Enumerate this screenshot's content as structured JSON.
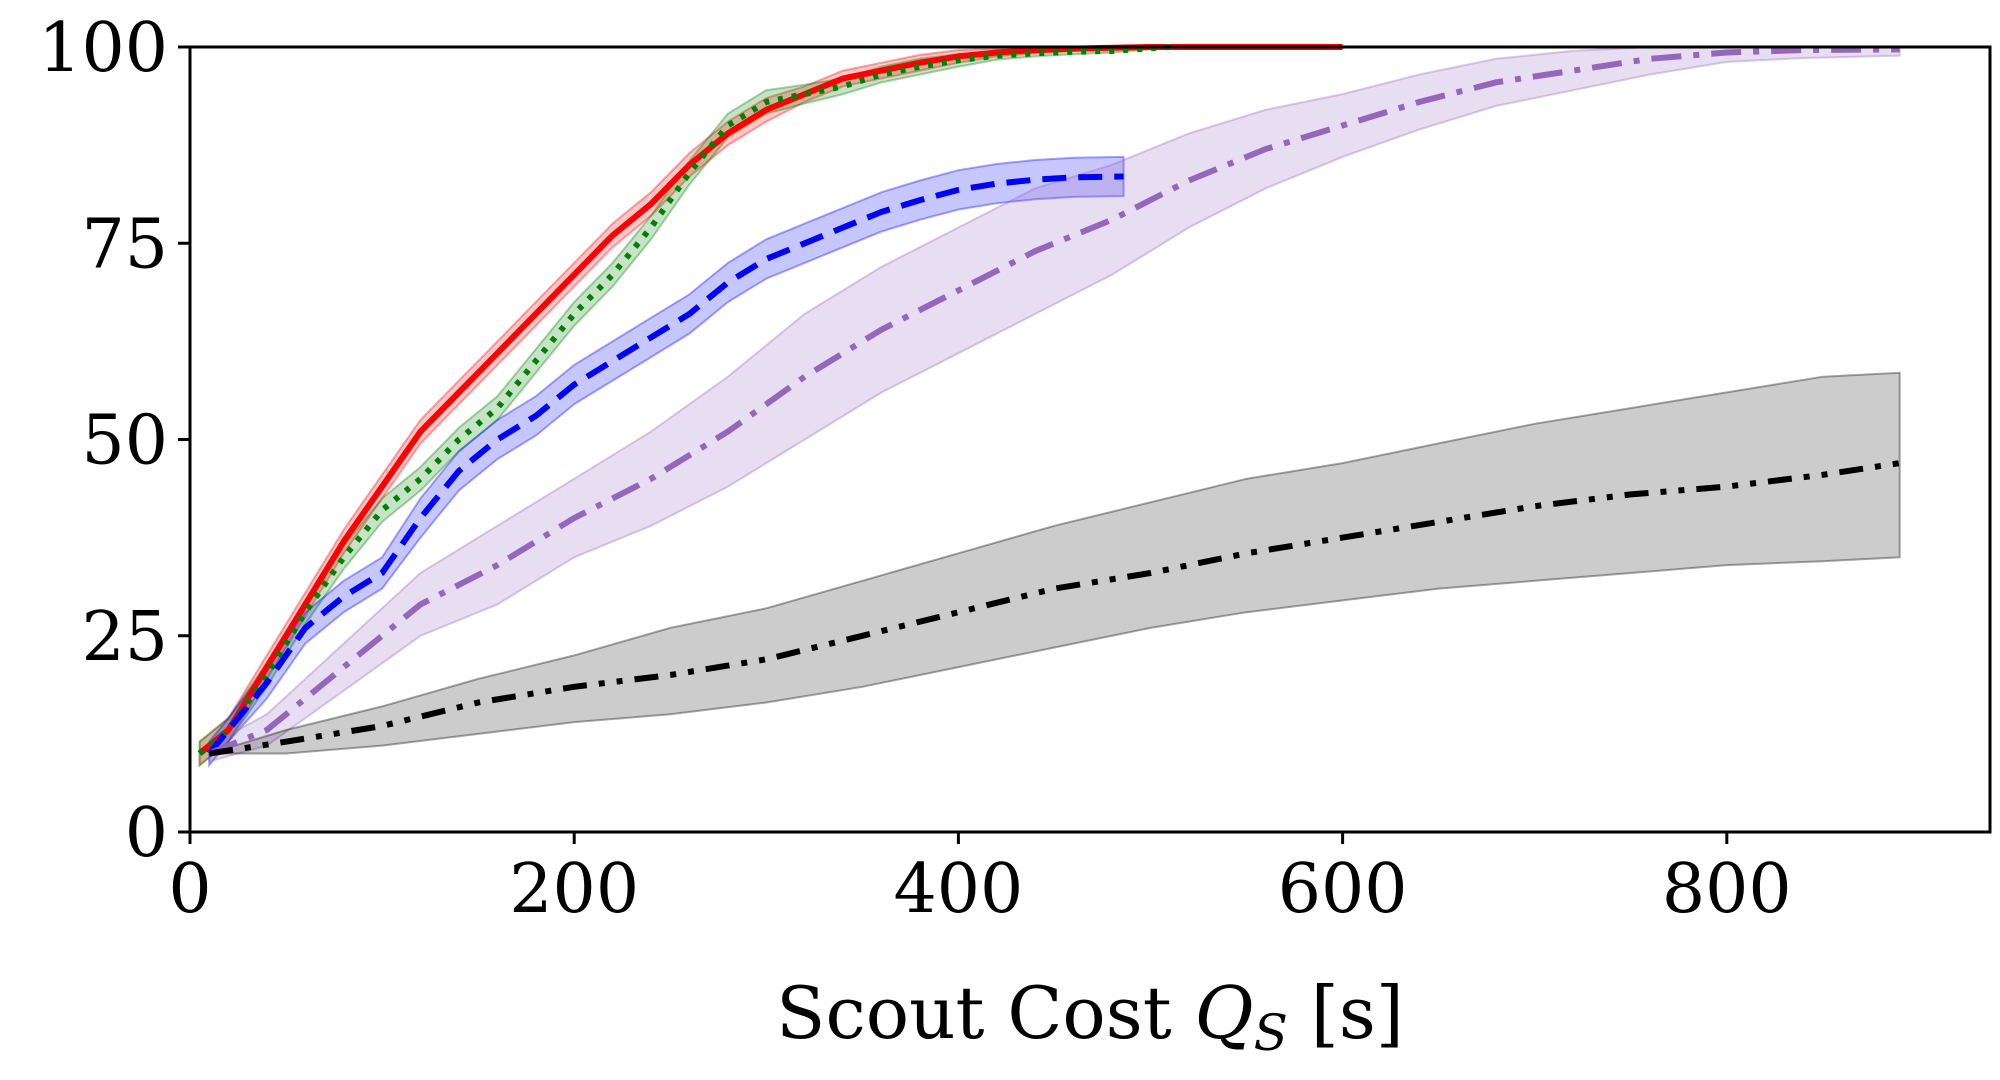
{
  "chart_data": {
    "type": "line",
    "title": "",
    "xlabel": "Scout Cost Q_S [s]",
    "xlabel_parts": {
      "pre": "Scout Cost ",
      "var": "Q",
      "sub": "S",
      "post": " [s]"
    },
    "ylabel": "",
    "xlim": [
      0,
      937
    ],
    "ylim": [
      0,
      100
    ],
    "xticks": [
      "0",
      "200",
      "400",
      "600",
      "800"
    ],
    "yticks": [
      "0",
      "25",
      "50",
      "75",
      "100"
    ],
    "grid": false,
    "legend": "none",
    "series": [
      {
        "color": "#ff0000",
        "dash": "solid",
        "x": [
          5,
          20,
          40,
          60,
          80,
          100,
          120,
          140,
          160,
          180,
          200,
          220,
          240,
          260,
          280,
          300,
          320,
          340,
          360,
          380,
          400,
          420,
          440,
          460,
          480,
          500,
          550,
          600
        ],
        "y": [
          10,
          13,
          21,
          29,
          37,
          44,
          51,
          56,
          61,
          66,
          71,
          76,
          80,
          85,
          89,
          92,
          94,
          96,
          97,
          98,
          98.8,
          99.3,
          99.6,
          99.8,
          99.9,
          100,
          100,
          100
        ],
        "band": [
          1.5,
          1.5,
          1.5,
          1.5,
          1.5,
          1.5,
          1.5,
          1.5,
          1.5,
          1.5,
          1.5,
          1.5,
          1.5,
          1.5,
          1.5,
          1.5,
          1,
          1,
          1,
          1,
          0.8,
          0.5,
          0.4,
          0.3,
          0.2,
          0.1,
          0.1,
          0.1
        ]
      },
      {
        "color": "#008000",
        "dash": "dotted",
        "x": [
          5,
          20,
          40,
          60,
          80,
          100,
          120,
          140,
          160,
          180,
          200,
          220,
          240,
          260,
          280,
          300,
          320,
          340,
          360,
          380,
          400,
          420,
          440,
          460,
          480,
          510
        ],
        "y": [
          10,
          13,
          20,
          28,
          35,
          41,
          45,
          50,
          54,
          60,
          66,
          71,
          77,
          84,
          90,
          93,
          94,
          95,
          96.5,
          97.5,
          98.3,
          98.9,
          99.2,
          99.4,
          99.5,
          100
        ],
        "band": [
          1.5,
          1.5,
          1.5,
          1.5,
          1.5,
          1.5,
          1.5,
          1.5,
          1.5,
          1.5,
          1.5,
          1.5,
          1.5,
          1.5,
          1.5,
          1.5,
          1.2,
          1,
          1,
          1,
          0.8,
          0.5,
          0.4,
          0.3,
          0.2,
          0.1
        ]
      },
      {
        "color": "#0000ff",
        "dash": "dashed",
        "x": [
          10,
          20,
          40,
          60,
          80,
          100,
          120,
          140,
          160,
          180,
          200,
          220,
          240,
          260,
          280,
          300,
          320,
          340,
          360,
          380,
          400,
          420,
          440,
          460,
          486
        ],
        "y": [
          10,
          13,
          19,
          26,
          30,
          33,
          40,
          46,
          50,
          53,
          57,
          60,
          63,
          66,
          70,
          73,
          75,
          77,
          79,
          80.5,
          81.8,
          82.6,
          83.1,
          83.4,
          83.5
        ],
        "band": [
          1.5,
          1.5,
          2,
          2,
          2,
          2,
          2.5,
          2.5,
          2.5,
          2.5,
          2.5,
          2.5,
          2.5,
          2.5,
          2.5,
          2.5,
          2.5,
          2.5,
          2.5,
          2.5,
          2.5,
          2.5,
          2.5,
          2.5,
          2.5
        ]
      },
      {
        "color": "#9467bd",
        "dash": "dashdot",
        "x": [
          10,
          40,
          80,
          120,
          160,
          200,
          240,
          280,
          320,
          360,
          400,
          440,
          480,
          520,
          560,
          600,
          640,
          680,
          720,
          760,
          800,
          840,
          890
        ],
        "y": [
          10,
          13,
          21,
          29,
          34,
          40,
          45,
          51,
          58,
          64,
          69,
          74,
          78,
          83,
          87,
          90,
          93,
          95.5,
          97,
          98.5,
          99.3,
          99.6,
          99.7
        ],
        "band": [
          1,
          2,
          3,
          4,
          5,
          5,
          6,
          7,
          8,
          8,
          8,
          8,
          7,
          6,
          5,
          4,
          3.5,
          3,
          2.5,
          2,
          1.2,
          1,
          0.8
        ]
      },
      {
        "color": "#000000",
        "dash": "dashdotdot",
        "x": [
          10,
          50,
          100,
          150,
          200,
          250,
          300,
          350,
          400,
          450,
          500,
          550,
          600,
          650,
          700,
          750,
          800,
          850,
          890
        ],
        "y": [
          10,
          11.5,
          13.5,
          16.5,
          18.5,
          20,
          22,
          25,
          28,
          31,
          33,
          35.5,
          37.5,
          39.5,
          41.5,
          43,
          44,
          45.5,
          47
        ],
        "lower": [
          10,
          10,
          11,
          12.5,
          14,
          15,
          16.5,
          18.5,
          21,
          23.5,
          26,
          28,
          29.5,
          31,
          32,
          33,
          34,
          34.5,
          35
        ],
        "upper": [
          10,
          13,
          16,
          19.5,
          22.5,
          26,
          28.5,
          32,
          35.5,
          39,
          42,
          45,
          47,
          49.5,
          52,
          54,
          56,
          58,
          58.5
        ]
      }
    ]
  }
}
